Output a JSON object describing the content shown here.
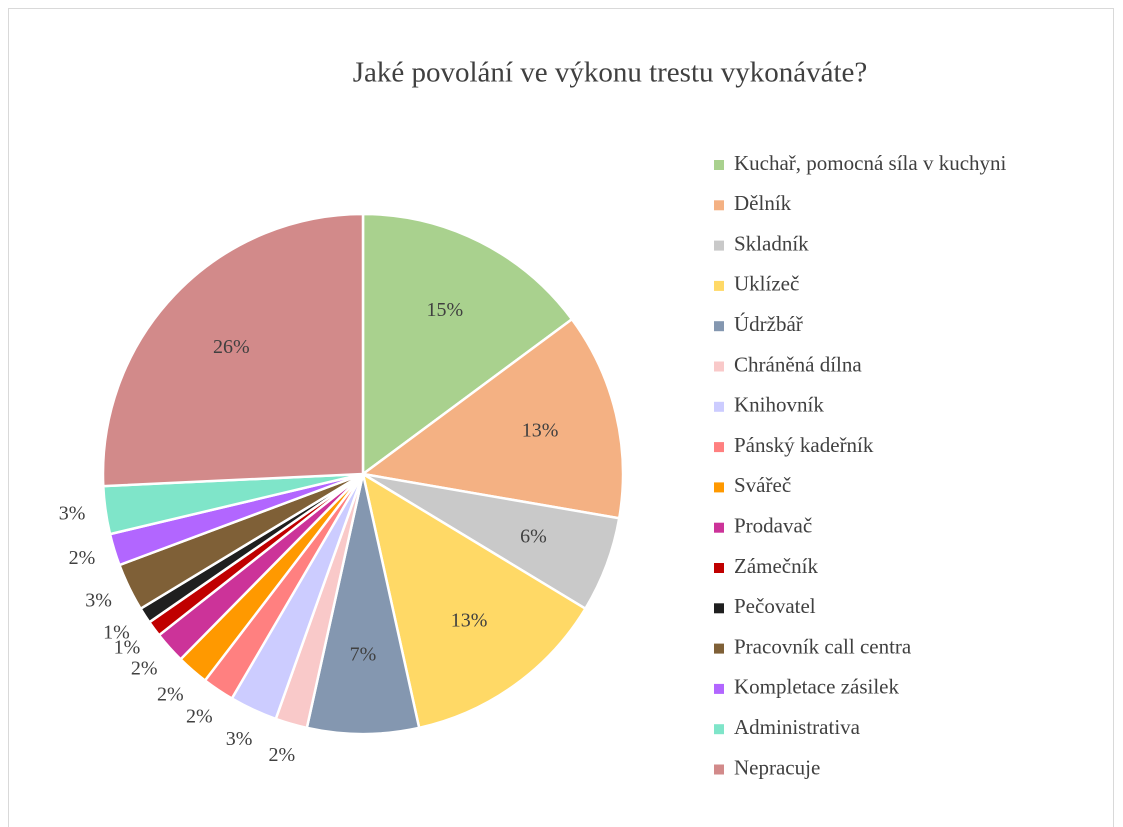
{
  "chart_data": {
    "type": "pie",
    "title": "Jaké povolání ve výkonu trestu vykonáváte?",
    "categories": [
      "Kuchař, pomocná síla v kuchyni",
      "Dělník",
      "Skladník",
      "Uklízeč",
      "Údržbář",
      "Chráněná dílna",
      "Knihovník",
      "Pánský kadeřník",
      "Svářeč",
      "Prodavač",
      "Zámečník",
      "Pečovatel",
      "Pracovník call centra",
      "Kompletace zásilek",
      "Administrativa",
      "Nepracuje"
    ],
    "values": [
      15,
      13,
      6,
      13,
      7,
      2,
      3,
      2,
      2,
      2,
      1,
      1,
      3,
      2,
      3,
      26
    ],
    "value_labels": [
      "15%",
      "13%",
      "6%",
      "13%",
      "7%",
      "2%",
      "3%",
      "2%",
      "2%",
      "2%",
      "1%",
      "1%",
      "3%",
      "2%",
      "3%",
      "26%"
    ],
    "colors": [
      "#a9d18e",
      "#f4b183",
      "#c9c9c9",
      "#ffd966",
      "#8497b0",
      "#f9c9c9",
      "#ccccff",
      "#ff8080",
      "#ff9900",
      "#cc3399",
      "#c00000",
      "#1f1f1f",
      "#7f6037",
      "#b266ff",
      "#7fe5c9",
      "#d28a8a"
    ],
    "legend": "right"
  }
}
